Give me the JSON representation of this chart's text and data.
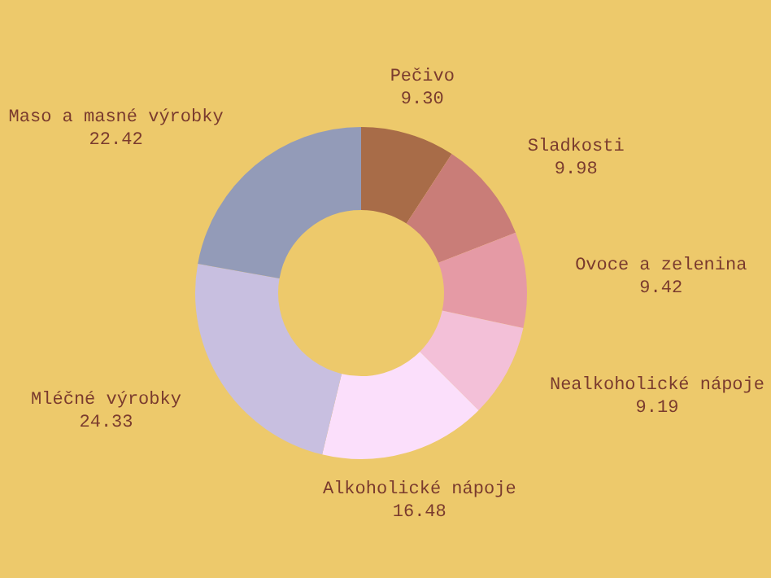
{
  "chart_data": {
    "type": "donut",
    "categories": [
      "Pečivo",
      "Sladkosti",
      "Ovoce a zelenina",
      "Nealkoholické nápoje",
      "Alkoholické nápoje",
      "Mléčné výrobky",
      "Maso a masné výrobky"
    ],
    "values": [
      9.3,
      9.98,
      9.42,
      9.19,
      16.48,
      24.33,
      22.42
    ],
    "colors": [
      "#a86c48",
      "#c97d78",
      "#e59aa5",
      "#f3c0d8",
      "#fbdffb",
      "#c8bfe0",
      "#939bb8"
    ],
    "value_labels": [
      "9.30",
      "9.98",
      "9.42",
      "9.19",
      "16.48",
      "24.33",
      "22.42"
    ],
    "legend": false
  }
}
